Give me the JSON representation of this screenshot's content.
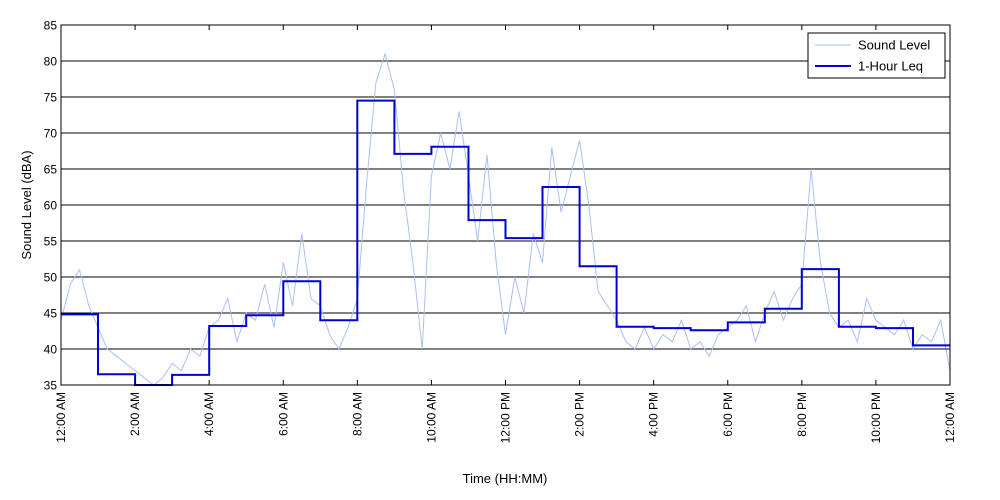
{
  "chart_data": {
    "type": "line",
    "title": "",
    "xlabel": "Time (HH:MM)",
    "ylabel": "Sound Level (dBA)",
    "xlim": [
      0,
      24
    ],
    "ylim": [
      35,
      85
    ],
    "grid": "horizontal",
    "legend_position": "top-right",
    "x_ticks": [
      0,
      2,
      4,
      6,
      8,
      10,
      12,
      14,
      16,
      18,
      20,
      22,
      24
    ],
    "x_tick_labels": [
      "12:00 AM",
      "2:00 AM",
      "4:00 AM",
      "6:00 AM",
      "8:00 AM",
      "10:00 AM",
      "12:00 PM",
      "2:00 PM",
      "4:00 PM",
      "6:00 PM",
      "8:00 PM",
      "10:00 PM",
      "12:00 AM"
    ],
    "y_ticks": [
      35,
      40,
      45,
      50,
      55,
      60,
      65,
      70,
      75,
      80,
      85
    ],
    "colors": {
      "sound_level": "#a9c1f2",
      "leq": "#0000d6"
    },
    "series": [
      {
        "name": "Sound Level",
        "x": [
          0,
          0.25,
          0.5,
          0.75,
          1,
          1.25,
          1.5,
          1.75,
          2,
          2.25,
          2.5,
          2.75,
          3,
          3.25,
          3.5,
          3.75,
          4,
          4.25,
          4.5,
          4.75,
          5,
          5.25,
          5.5,
          5.75,
          6,
          6.25,
          6.5,
          6.75,
          7,
          7.25,
          7.5,
          7.75,
          8,
          8.25,
          8.5,
          8.75,
          9,
          9.25,
          9.5,
          9.75,
          10,
          10.25,
          10.5,
          10.75,
          11,
          11.25,
          11.5,
          11.75,
          12,
          12.25,
          12.5,
          12.75,
          13,
          13.25,
          13.5,
          13.75,
          14,
          14.25,
          14.5,
          14.75,
          15,
          15.25,
          15.5,
          15.75,
          16,
          16.25,
          16.5,
          16.75,
          17,
          17.25,
          17.5,
          17.75,
          18,
          18.25,
          18.5,
          18.75,
          19,
          19.25,
          19.5,
          19.75,
          20,
          20.25,
          20.5,
          20.75,
          21,
          21.25,
          21.5,
          21.75,
          22,
          22.25,
          22.5,
          22.75,
          23,
          23.25,
          23.5,
          23.75,
          24
        ],
        "values": [
          44,
          49,
          51,
          46,
          43,
          40,
          39,
          38,
          37,
          36,
          35,
          36,
          38,
          37,
          40,
          39,
          43,
          44,
          47,
          41,
          45,
          44,
          49,
          43,
          52,
          46,
          56,
          47,
          46,
          42,
          40,
          43,
          47,
          63,
          77,
          81,
          76,
          62,
          52,
          40,
          64,
          70,
          65,
          73,
          64,
          55,
          67,
          52,
          42,
          50,
          45,
          56,
          52,
          68,
          59,
          64,
          69,
          60,
          48,
          46,
          44,
          41,
          40,
          43,
          40,
          42,
          41,
          44,
          40,
          41,
          39,
          42,
          43,
          44,
          46,
          41,
          45,
          48,
          44,
          47,
          49,
          65,
          52,
          45,
          43,
          44,
          41,
          47,
          44,
          43,
          42,
          44,
          40,
          42,
          41,
          44,
          37
        ]
      },
      {
        "name": "1-Hour Leq",
        "type": "step",
        "x": [
          0,
          1,
          2,
          3,
          4,
          5,
          6,
          7,
          8,
          9,
          10,
          11,
          12,
          13,
          14,
          15,
          16,
          17,
          18,
          19,
          20,
          21,
          22,
          23,
          24
        ],
        "values": [
          44.8,
          36.5,
          35.0,
          36.4,
          43.2,
          44.7,
          49.4,
          44.0,
          74.5,
          67.1,
          68.1,
          57.9,
          55.4,
          62.5,
          51.5,
          43.1,
          42.9,
          42.6,
          43.7,
          45.6,
          51.1,
          43.1,
          42.9,
          40.5,
          40.5
        ]
      }
    ]
  }
}
